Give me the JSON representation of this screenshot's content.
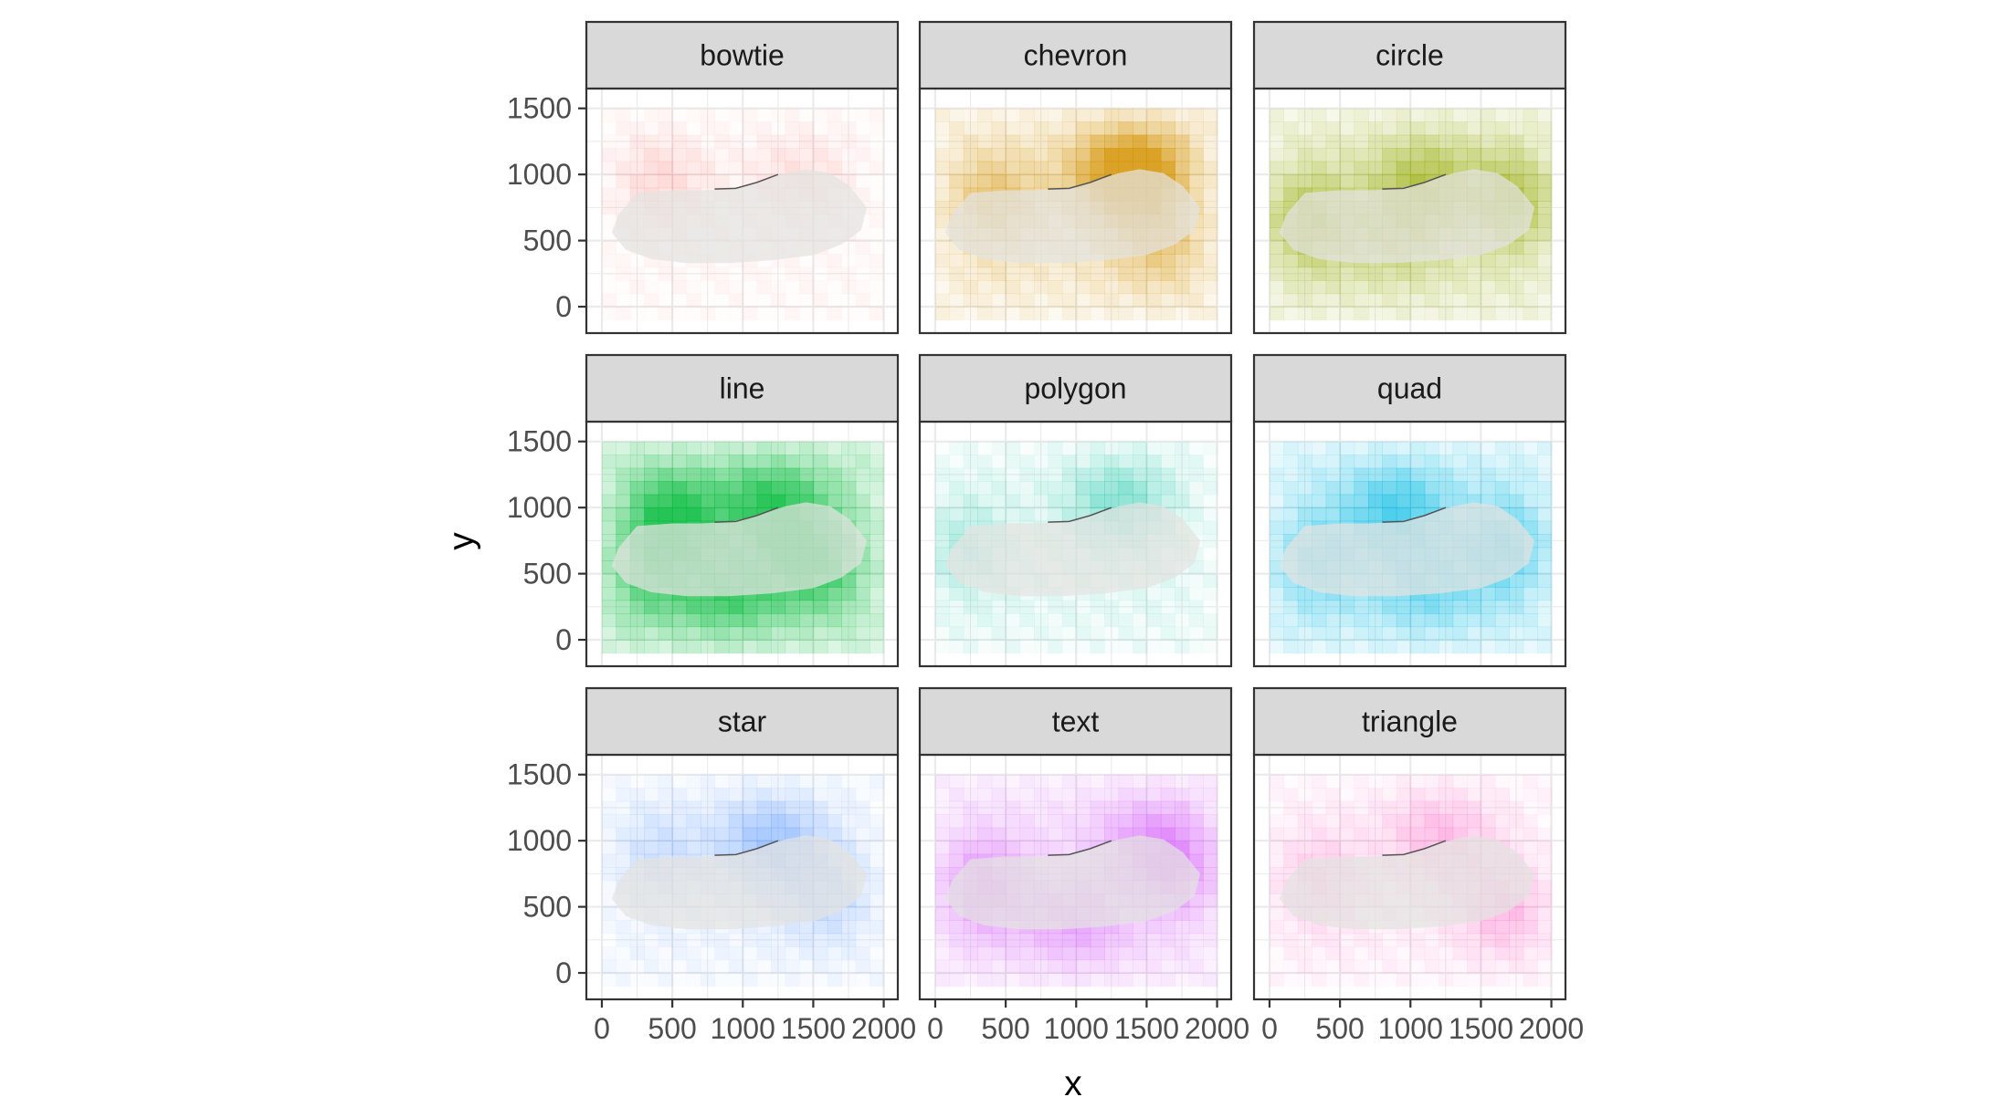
{
  "chart_data": {
    "type": "heatmap",
    "title": "",
    "xlabel": "x",
    "ylabel": "y",
    "xlim": [
      -110,
      2100
    ],
    "ylim": [
      -200,
      1650
    ],
    "x_ticks": [
      0,
      500,
      1000,
      1500,
      2000
    ],
    "x_tick_labels": [
      "0",
      "500",
      "1000",
      "1500",
      "2000"
    ],
    "y_ticks": [
      0,
      500,
      1000,
      1500
    ],
    "y_tick_labels": [
      "0",
      "500",
      "1000",
      "1500"
    ],
    "grid": true,
    "legend": "none",
    "facet_layout": {
      "rows": 3,
      "cols": 3
    },
    "heat_grid": {
      "x_range": [
        0,
        2000
      ],
      "y_range": [
        -100,
        1500
      ],
      "cell_size": 100
    },
    "shoe_outline": [
      [
        120,
        700
      ],
      [
        250,
        860
      ],
      [
        500,
        880
      ],
      [
        700,
        880
      ],
      [
        900,
        890
      ],
      [
        1100,
        940
      ],
      [
        1300,
        1010
      ],
      [
        1450,
        1040
      ],
      [
        1620,
        1010
      ],
      [
        1760,
        910
      ],
      [
        1880,
        750
      ],
      [
        1840,
        580
      ],
      [
        1700,
        470
      ],
      [
        1500,
        390
      ],
      [
        1200,
        350
      ],
      [
        900,
        330
      ],
      [
        600,
        330
      ],
      [
        350,
        360
      ],
      [
        170,
        430
      ],
      [
        70,
        560
      ]
    ],
    "panels": [
      {
        "name": "bowtie",
        "color": "#F8766D",
        "intensity": 0.12,
        "hotspots": [
          [
            400,
            950,
            0.35
          ],
          [
            1400,
            1000,
            0.25
          ]
        ]
      },
      {
        "name": "chevron",
        "color": "#D39200",
        "intensity": 0.45,
        "hotspots": [
          [
            1300,
            1000,
            0.9
          ],
          [
            400,
            800,
            0.6
          ],
          [
            1600,
            500,
            0.5
          ],
          [
            1500,
            1050,
            0.7
          ]
        ]
      },
      {
        "name": "circle",
        "color": "#93AA00",
        "intensity": 0.55,
        "hotspots": [
          [
            200,
            650,
            0.9
          ],
          [
            1800,
            800,
            0.9
          ],
          [
            1100,
            950,
            0.7
          ],
          [
            900,
            550,
            0.45
          ]
        ]
      },
      {
        "name": "line",
        "color": "#00BA38",
        "intensity": 0.75,
        "hotspots": [
          [
            500,
            950,
            0.9
          ],
          [
            1500,
            600,
            0.9
          ],
          [
            1200,
            1050,
            0.8
          ],
          [
            300,
            500,
            0.6
          ],
          [
            900,
            350,
            0.7
          ]
        ]
      },
      {
        "name": "polygon",
        "color": "#00C19F",
        "intensity": 0.25,
        "hotspots": [
          [
            1300,
            1050,
            0.6
          ],
          [
            100,
            700,
            0.45
          ]
        ]
      },
      {
        "name": "quad",
        "color": "#00B9E3",
        "intensity": 0.55,
        "hotspots": [
          [
            900,
            1000,
            0.75
          ],
          [
            1700,
            700,
            0.7
          ],
          [
            300,
            600,
            0.55
          ],
          [
            1100,
            400,
            0.5
          ]
        ]
      },
      {
        "name": "star",
        "color": "#619CFF",
        "intensity": 0.25,
        "hotspots": [
          [
            1200,
            1000,
            0.75
          ],
          [
            1600,
            600,
            0.45
          ],
          [
            400,
            900,
            0.35
          ]
        ]
      },
      {
        "name": "text",
        "color": "#DB72FB",
        "intensity": 0.55,
        "hotspots": [
          [
            300,
            650,
            0.9
          ],
          [
            1800,
            800,
            0.85
          ],
          [
            1000,
            400,
            0.65
          ],
          [
            1500,
            1000,
            0.6
          ]
        ]
      },
      {
        "name": "triangle",
        "color": "#FF61C3",
        "intensity": 0.25,
        "hotspots": [
          [
            1200,
            1050,
            0.5
          ],
          [
            1700,
            500,
            0.55
          ],
          [
            300,
            700,
            0.4
          ]
        ]
      }
    ]
  }
}
